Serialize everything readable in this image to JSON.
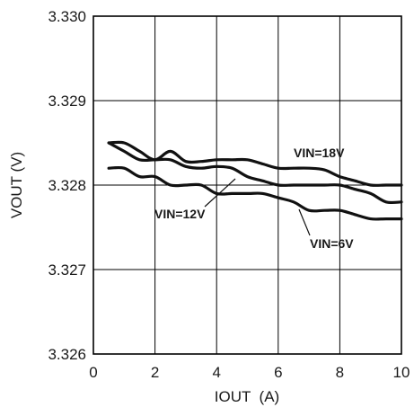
{
  "chart_data": {
    "type": "line",
    "xlabel": "IOUT  (A)",
    "ylabel": "VOUT (V)",
    "xlim": [
      0,
      10
    ],
    "ylim": [
      3.326,
      3.33
    ],
    "xticks": [
      "0",
      "2",
      "4",
      "6",
      "8",
      "10"
    ],
    "yticks": [
      "3.326",
      "3.327",
      "3.328",
      "3.329",
      "3.330"
    ],
    "grid": true,
    "series": [
      {
        "name": "VIN=18V",
        "x": [
          0.5,
          1.0,
          1.5,
          2.0,
          2.5,
          3.0,
          3.5,
          4.0,
          4.5,
          5.0,
          5.5,
          6.0,
          6.5,
          7.0,
          7.5,
          8.0,
          8.5,
          9.0,
          9.5,
          10.0
        ],
        "values": [
          3.3285,
          3.3285,
          3.3284,
          3.3283,
          3.3284,
          3.32828,
          3.32828,
          3.3283,
          3.3283,
          3.3283,
          3.32825,
          3.3282,
          3.3282,
          3.3282,
          3.32818,
          3.3281,
          3.32805,
          3.328,
          3.328,
          3.328
        ]
      },
      {
        "name": "VIN=12V",
        "x": [
          0.5,
          1.0,
          1.5,
          2.0,
          2.5,
          3.0,
          3.5,
          4.0,
          4.5,
          5.0,
          5.5,
          6.0,
          6.5,
          7.0,
          7.5,
          8.0,
          8.5,
          9.0,
          9.5,
          10.0
        ],
        "values": [
          3.3285,
          3.3284,
          3.3283,
          3.3283,
          3.3283,
          3.32822,
          3.3282,
          3.32822,
          3.3282,
          3.3281,
          3.32805,
          3.328,
          3.328,
          3.328,
          3.328,
          3.328,
          3.32795,
          3.3279,
          3.3278,
          3.3278
        ]
      },
      {
        "name": "VIN=6V",
        "x": [
          0.5,
          1.0,
          1.5,
          2.0,
          2.5,
          3.0,
          3.5,
          4.0,
          4.5,
          5.0,
          5.5,
          6.0,
          6.5,
          7.0,
          7.5,
          8.0,
          8.5,
          9.0,
          9.5,
          10.0
        ],
        "values": [
          3.3282,
          3.3282,
          3.3281,
          3.3281,
          3.328,
          3.328,
          3.328,
          3.3279,
          3.3279,
          3.3279,
          3.3279,
          3.32785,
          3.3278,
          3.3277,
          3.3277,
          3.3277,
          3.32765,
          3.3276,
          3.3276,
          3.3276
        ]
      }
    ],
    "annotations": [
      "VIN=18V",
      "VIN=12V",
      "VIN=6V"
    ]
  }
}
